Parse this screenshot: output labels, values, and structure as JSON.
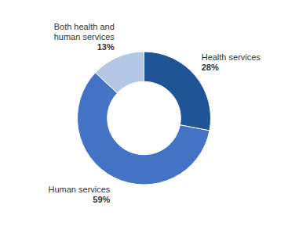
{
  "chart_data": {
    "type": "donut",
    "categories": [
      "Health services",
      "Human services",
      "Both health and\nhuman services"
    ],
    "values": [
      28,
      59,
      13
    ],
    "value_labels": [
      "28%",
      "59%",
      "13%"
    ],
    "colors": [
      "#1F5496",
      "#4472C4",
      "#B4C7E7"
    ],
    "data_labels": true
  }
}
